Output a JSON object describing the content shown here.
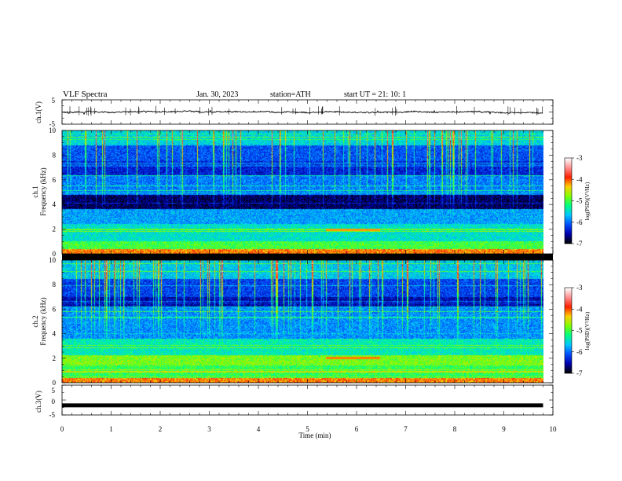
{
  "header": {
    "title": "VLF  Spectra",
    "date": "Jan. 30, 2023",
    "station": "station=ATH",
    "start_ut": "start  UT  =    21: 10: 1"
  },
  "colors": {
    "background": "#ffffff",
    "waveform": "#000000",
    "spectrogram_floor": "#000000"
  },
  "chart_data": [
    {
      "type": "line",
      "id": "ch1-waveform",
      "ylabel": "ch.1(V)",
      "ylim": [
        -5,
        5
      ],
      "yticks": [
        "5",
        "-5"
      ],
      "xlim": [
        0,
        10
      ],
      "x_extent": 9.8,
      "baseline": 0,
      "noise_amplitude": 0.5
    },
    {
      "type": "heatmap",
      "id": "ch1-spectrogram",
      "ylabel": "ch.1\nFrequency  (kHz)",
      "ylim": [
        0,
        10
      ],
      "yticks": [
        "0",
        "2",
        "4",
        "6",
        "8",
        "10"
      ],
      "xlim": [
        0,
        10
      ],
      "x_extent": 9.8,
      "z_unit_label": "log(PSD)(V²/Hz)",
      "zlim": [
        -7,
        -3
      ],
      "colorbar_ticks": [
        "-3",
        "-4",
        "-5",
        "-6",
        "-7"
      ],
      "colorscale": [
        "#000000",
        "#0000b0",
        "#0050ff",
        "#00c8ff",
        "#00ff80",
        "#80ff00",
        "#ffd000",
        "#ff2000",
        "#ff9090",
        "#ffffff"
      ]
    },
    {
      "type": "heatmap",
      "id": "ch2-spectrogram",
      "ylabel": "ch.2\nFrequency  (kHz)",
      "ylim": [
        0,
        10
      ],
      "yticks": [
        "0",
        "2",
        "4",
        "6",
        "8",
        "10"
      ],
      "xlim": [
        0,
        10
      ],
      "x_extent": 9.8,
      "z_unit_label": "log(PSD)(V²/Hz)",
      "zlim": [
        -7,
        -3
      ],
      "colorbar_ticks": [
        "-3",
        "-4",
        "-5",
        "-6",
        "-7"
      ]
    },
    {
      "type": "line",
      "id": "ch3-waveform",
      "ylabel": "ch.3(V)",
      "ylim": [
        -5,
        5
      ],
      "yticks": [
        "5",
        "0",
        "-5"
      ],
      "xlim": [
        0,
        10
      ],
      "x_extent": 9.8,
      "baseline": -1.8,
      "xlabel": "Time  (min)",
      "xticks": [
        "0",
        "1",
        "2",
        "3",
        "4",
        "5",
        "6",
        "7",
        "8",
        "9",
        "10"
      ]
    }
  ]
}
